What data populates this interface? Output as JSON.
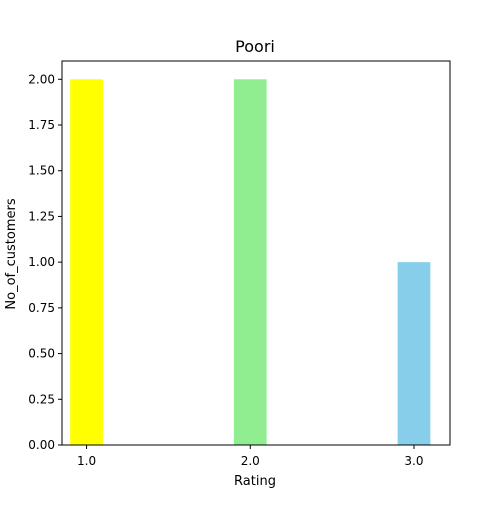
{
  "chart_data": {
    "type": "bar",
    "title": "Poori",
    "xlabel": "Rating",
    "ylabel": "No_of_customers",
    "categories": [
      "1.0",
      "2.0",
      "3.0"
    ],
    "x": [
      1.0,
      2.0,
      3.0
    ],
    "values": [
      2,
      2,
      1
    ],
    "colors": [
      "#ffff00",
      "#90ee90",
      "#87ceeb"
    ],
    "ylim": [
      0,
      2.1
    ],
    "xlim": [
      0.85,
      3.22
    ],
    "yticks": [
      0,
      0.25,
      0.5,
      0.75,
      1.0,
      1.25,
      1.5,
      1.75,
      2.0
    ],
    "ytick_labels": [
      "0.00",
      "0.25",
      "0.50",
      "0.75",
      "1.00",
      "1.25",
      "1.50",
      "1.75",
      "2.00"
    ],
    "bar_width": 0.2,
    "grid": false,
    "legend": "none"
  }
}
